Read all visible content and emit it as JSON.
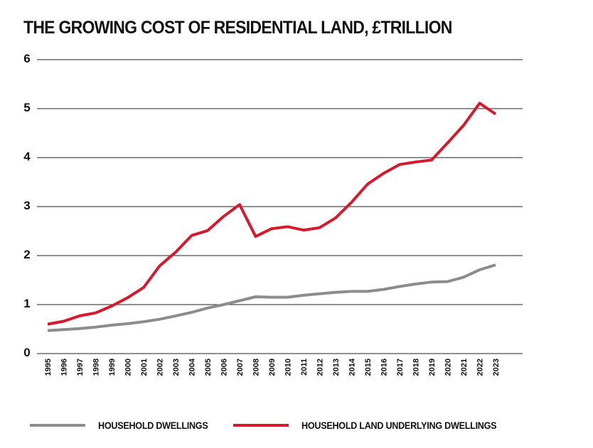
{
  "colors": {
    "dwellings": "#8c8c8c",
    "land": "#d7192d",
    "grid": "#222222",
    "text": "#111111"
  },
  "chart_data": {
    "type": "line",
    "title": "THE GROWING COST OF RESIDENTIAL LAND, £TRILLION",
    "xlabel": "",
    "ylabel": "",
    "ylim": [
      0,
      6
    ],
    "yticks": [
      "0",
      "1",
      "2",
      "3",
      "4",
      "5",
      "6"
    ],
    "grid": true,
    "legend_position": "bottom",
    "x": [
      "1995",
      "1996",
      "1997",
      "1998",
      "1999",
      "2000",
      "2001",
      "2002",
      "2003",
      "2004",
      "2005",
      "2006",
      "2007",
      "2008",
      "2009",
      "2010",
      "2011",
      "2012",
      "2013",
      "2014",
      "2015",
      "2016",
      "2017",
      "2018",
      "2019",
      "2020",
      "2021",
      "2022",
      "2023"
    ],
    "series": [
      {
        "name": "HOUSEHOLD DWELLINGS",
        "color_key": "dwellings",
        "values": [
          0.47,
          0.49,
          0.51,
          0.54,
          0.58,
          0.61,
          0.65,
          0.7,
          0.77,
          0.84,
          0.93,
          1.0,
          1.08,
          1.16,
          1.15,
          1.15,
          1.19,
          1.22,
          1.25,
          1.27,
          1.27,
          1.31,
          1.37,
          1.42,
          1.46,
          1.47,
          1.56,
          1.71,
          1.81
        ]
      },
      {
        "name": "HOUSEHOLD LAND UNDERLYING DWELLINGS",
        "color_key": "land",
        "values": [
          0.6,
          0.66,
          0.77,
          0.83,
          0.97,
          1.14,
          1.35,
          1.79,
          2.07,
          2.41,
          2.51,
          2.8,
          3.04,
          2.39,
          2.55,
          2.59,
          2.52,
          2.57,
          2.77,
          3.09,
          3.46,
          3.68,
          3.86,
          3.91,
          3.95,
          4.3,
          4.66,
          5.11,
          4.89
        ]
      }
    ]
  }
}
